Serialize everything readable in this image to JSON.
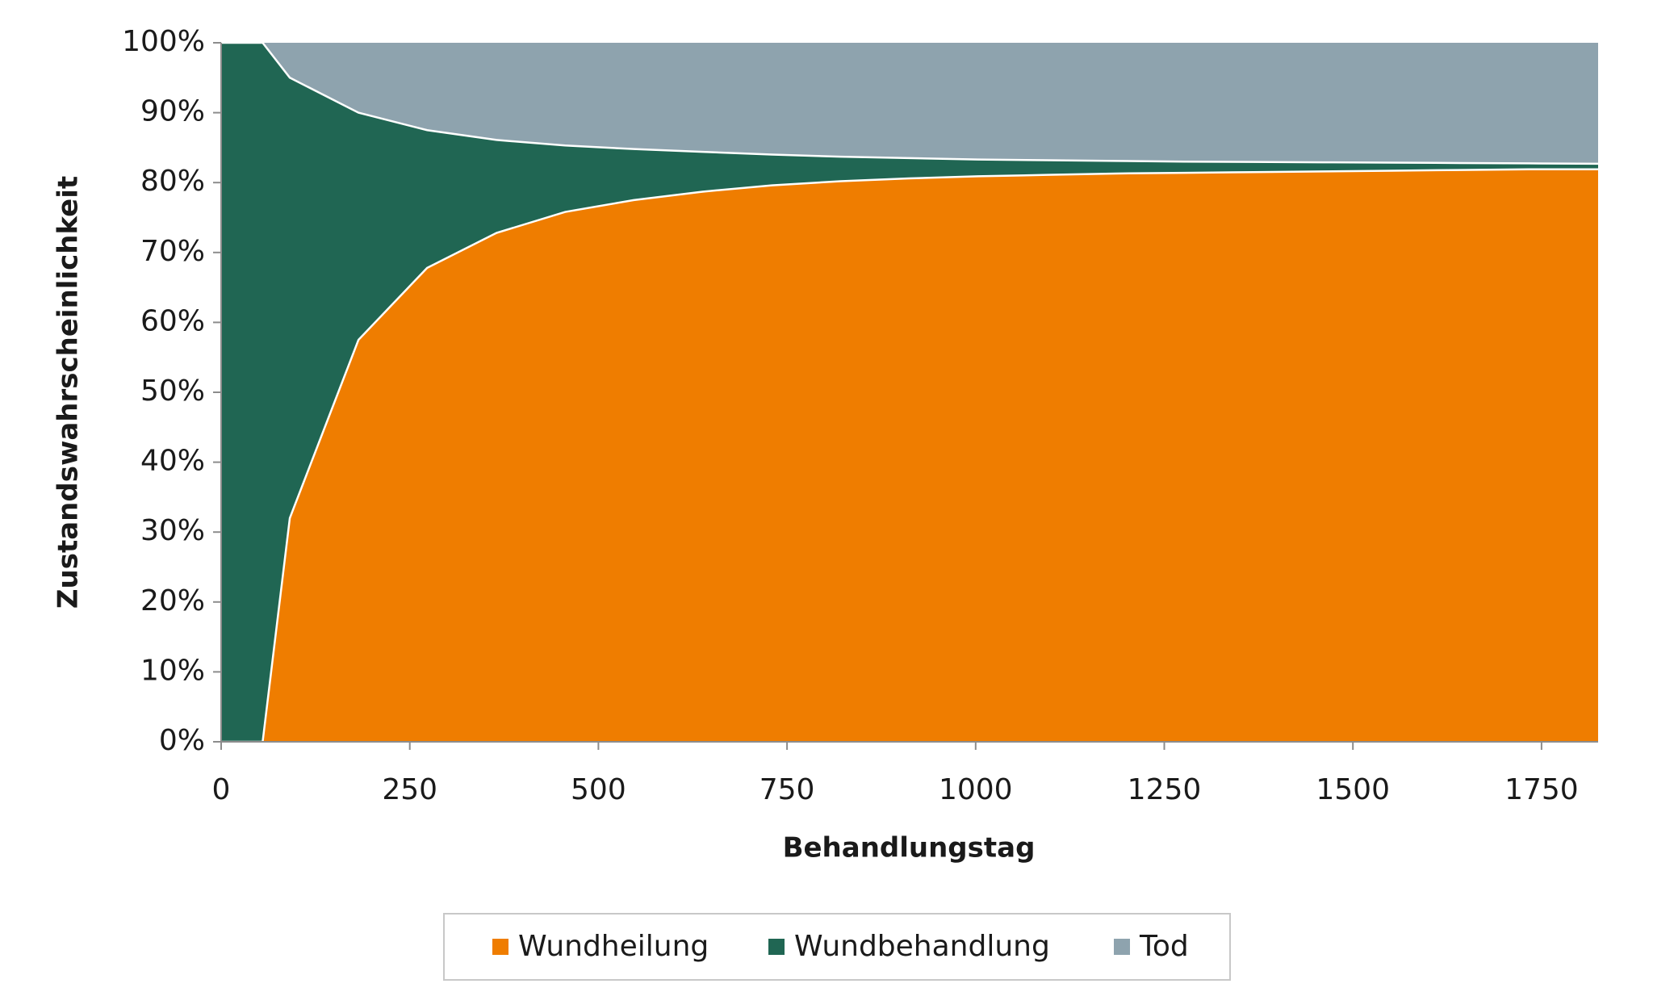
{
  "chart_data": {
    "type": "stacked_area",
    "x_label": "Behandlungstag",
    "y_label": "Zustandswahrscheinlichkeit",
    "x": [
      0,
      55,
      91,
      182,
      273,
      365,
      456,
      547,
      638,
      730,
      821,
      912,
      1003,
      1095,
      1186,
      1277,
      1368,
      1460,
      1551,
      1642,
      1733,
      1825
    ],
    "series": [
      {
        "name": "Wundheilung",
        "color": "#ef7d00",
        "values": [
          0,
          0,
          32,
          57.5,
          67.8,
          72.8,
          75.8,
          77.5,
          78.7,
          79.6,
          80.2,
          80.6,
          80.9,
          81.1,
          81.3,
          81.4,
          81.5,
          81.6,
          81.7,
          81.8,
          81.9,
          81.9
        ]
      },
      {
        "name": "Wundbehandlung",
        "color": "#206653",
        "values": [
          100,
          100,
          63,
          32.5,
          19.7,
          13.3,
          9.5,
          7.3,
          5.7,
          4.4,
          3.5,
          2.9,
          2.4,
          2.1,
          1.8,
          1.6,
          1.45,
          1.3,
          1.15,
          1.0,
          0.85,
          0.8
        ]
      },
      {
        "name": "Tod",
        "color": "#8ea3ae",
        "values": [
          0,
          0,
          5,
          10,
          12.5,
          13.9,
          14.7,
          15.2,
          15.6,
          16,
          16.3,
          16.5,
          16.7,
          16.8,
          16.9,
          17,
          17.05,
          17.1,
          17.15,
          17.2,
          17.25,
          17.3
        ]
      }
    ],
    "xlim": [
      0,
      1825
    ],
    "xticks": [
      0,
      250,
      500,
      750,
      1000,
      1250,
      1500,
      1750
    ],
    "ylim": [
      0,
      100
    ],
    "yticks": [
      {
        "value": 0,
        "label": "0%"
      },
      {
        "value": 10,
        "label": "10%"
      },
      {
        "value": 20,
        "label": "20%"
      },
      {
        "value": 30,
        "label": "30%"
      },
      {
        "value": 40,
        "label": "40%"
      },
      {
        "value": 50,
        "label": "50%"
      },
      {
        "value": 60,
        "label": "60%"
      },
      {
        "value": 70,
        "label": "70%"
      },
      {
        "value": 80,
        "label": "80%"
      },
      {
        "value": 90,
        "label": "90%"
      },
      {
        "value": 100,
        "label": "100%"
      }
    ],
    "legend": "bottom"
  }
}
